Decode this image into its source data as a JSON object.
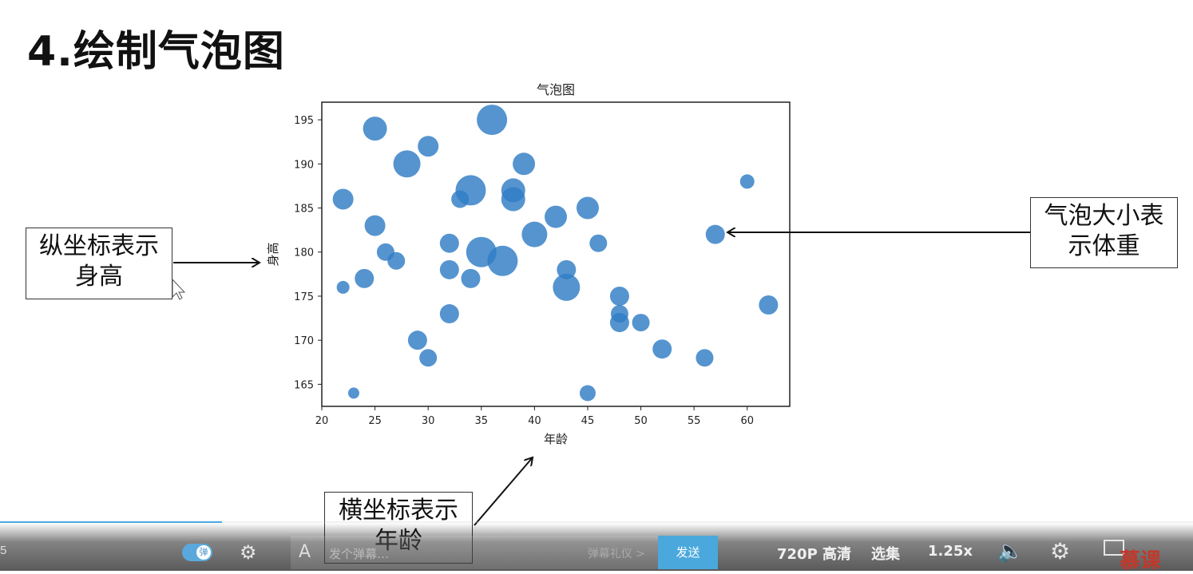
{
  "slide": {
    "title": "4.绘制气泡图"
  },
  "chart_data": {
    "type": "scatter",
    "title": "气泡图",
    "xlabel": "年龄",
    "ylabel": "身高",
    "xlim": [
      20,
      64
    ],
    "ylim": [
      162.5,
      197
    ],
    "x_ticks": [
      20,
      25,
      30,
      35,
      40,
      45,
      50,
      55,
      60
    ],
    "y_ticks": [
      165,
      170,
      175,
      180,
      185,
      190,
      195
    ],
    "x_tick_labels": [
      "20",
      "25",
      "30",
      "35",
      "40",
      "45",
      "50",
      "55",
      "60"
    ],
    "y_tick_labels": [
      "165",
      "170",
      "175",
      "180",
      "185",
      "190",
      "195"
    ],
    "color": "#2f7dc4",
    "size_encodes": "体重",
    "points": [
      {
        "x": 36,
        "y": 195,
        "size": 19
      },
      {
        "x": 25,
        "y": 194,
        "size": 15
      },
      {
        "x": 30,
        "y": 192,
        "size": 13
      },
      {
        "x": 28,
        "y": 190,
        "size": 17
      },
      {
        "x": 39,
        "y": 190,
        "size": 14
      },
      {
        "x": 22,
        "y": 186,
        "size": 13
      },
      {
        "x": 33,
        "y": 186,
        "size": 11
      },
      {
        "x": 34,
        "y": 187,
        "size": 19
      },
      {
        "x": 38,
        "y": 187,
        "size": 15
      },
      {
        "x": 38,
        "y": 186,
        "size": 15
      },
      {
        "x": 42,
        "y": 184,
        "size": 14
      },
      {
        "x": 45,
        "y": 185,
        "size": 14
      },
      {
        "x": 60,
        "y": 188,
        "size": 9
      },
      {
        "x": 25,
        "y": 183,
        "size": 13
      },
      {
        "x": 40,
        "y": 182,
        "size": 16
      },
      {
        "x": 57,
        "y": 182,
        "size": 12
      },
      {
        "x": 32,
        "y": 181,
        "size": 12
      },
      {
        "x": 46,
        "y": 181,
        "size": 11
      },
      {
        "x": 26,
        "y": 180,
        "size": 11
      },
      {
        "x": 35,
        "y": 180,
        "size": 19
      },
      {
        "x": 27,
        "y": 179,
        "size": 11
      },
      {
        "x": 37,
        "y": 179,
        "size": 19
      },
      {
        "x": 32,
        "y": 178,
        "size": 12
      },
      {
        "x": 43,
        "y": 178,
        "size": 12
      },
      {
        "x": 24,
        "y": 177,
        "size": 12
      },
      {
        "x": 34,
        "y": 177,
        "size": 12
      },
      {
        "x": 22,
        "y": 176,
        "size": 8
      },
      {
        "x": 43,
        "y": 176,
        "size": 17
      },
      {
        "x": 48,
        "y": 175,
        "size": 12
      },
      {
        "x": 62,
        "y": 174,
        "size": 12
      },
      {
        "x": 32,
        "y": 173,
        "size": 12
      },
      {
        "x": 48,
        "y": 173,
        "size": 11
      },
      {
        "x": 48,
        "y": 172,
        "size": 12
      },
      {
        "x": 50,
        "y": 172,
        "size": 11
      },
      {
        "x": 29,
        "y": 170,
        "size": 12
      },
      {
        "x": 52,
        "y": 169,
        "size": 12
      },
      {
        "x": 30,
        "y": 168,
        "size": 11
      },
      {
        "x": 56,
        "y": 168,
        "size": 11
      },
      {
        "x": 23,
        "y": 164,
        "size": 7
      },
      {
        "x": 45,
        "y": 164,
        "size": 10
      }
    ]
  },
  "callouts": {
    "ylabel_note": [
      "纵坐标表示",
      "身高"
    ],
    "xlabel_note": [
      "横坐标表示",
      "年龄"
    ],
    "size_note": [
      "气泡大小表",
      "示体重"
    ]
  },
  "player": {
    "time_partial": "5",
    "danmu_toggle_label": "弹",
    "danmu_placeholder": "发个弹幕…",
    "danmu_etiquette": "弹幕礼仪 >",
    "send_label": "发送",
    "quality_label": "720P 高清",
    "episodes_label": "选集",
    "speed_label": "1.25x",
    "logo_text": "慕课"
  }
}
